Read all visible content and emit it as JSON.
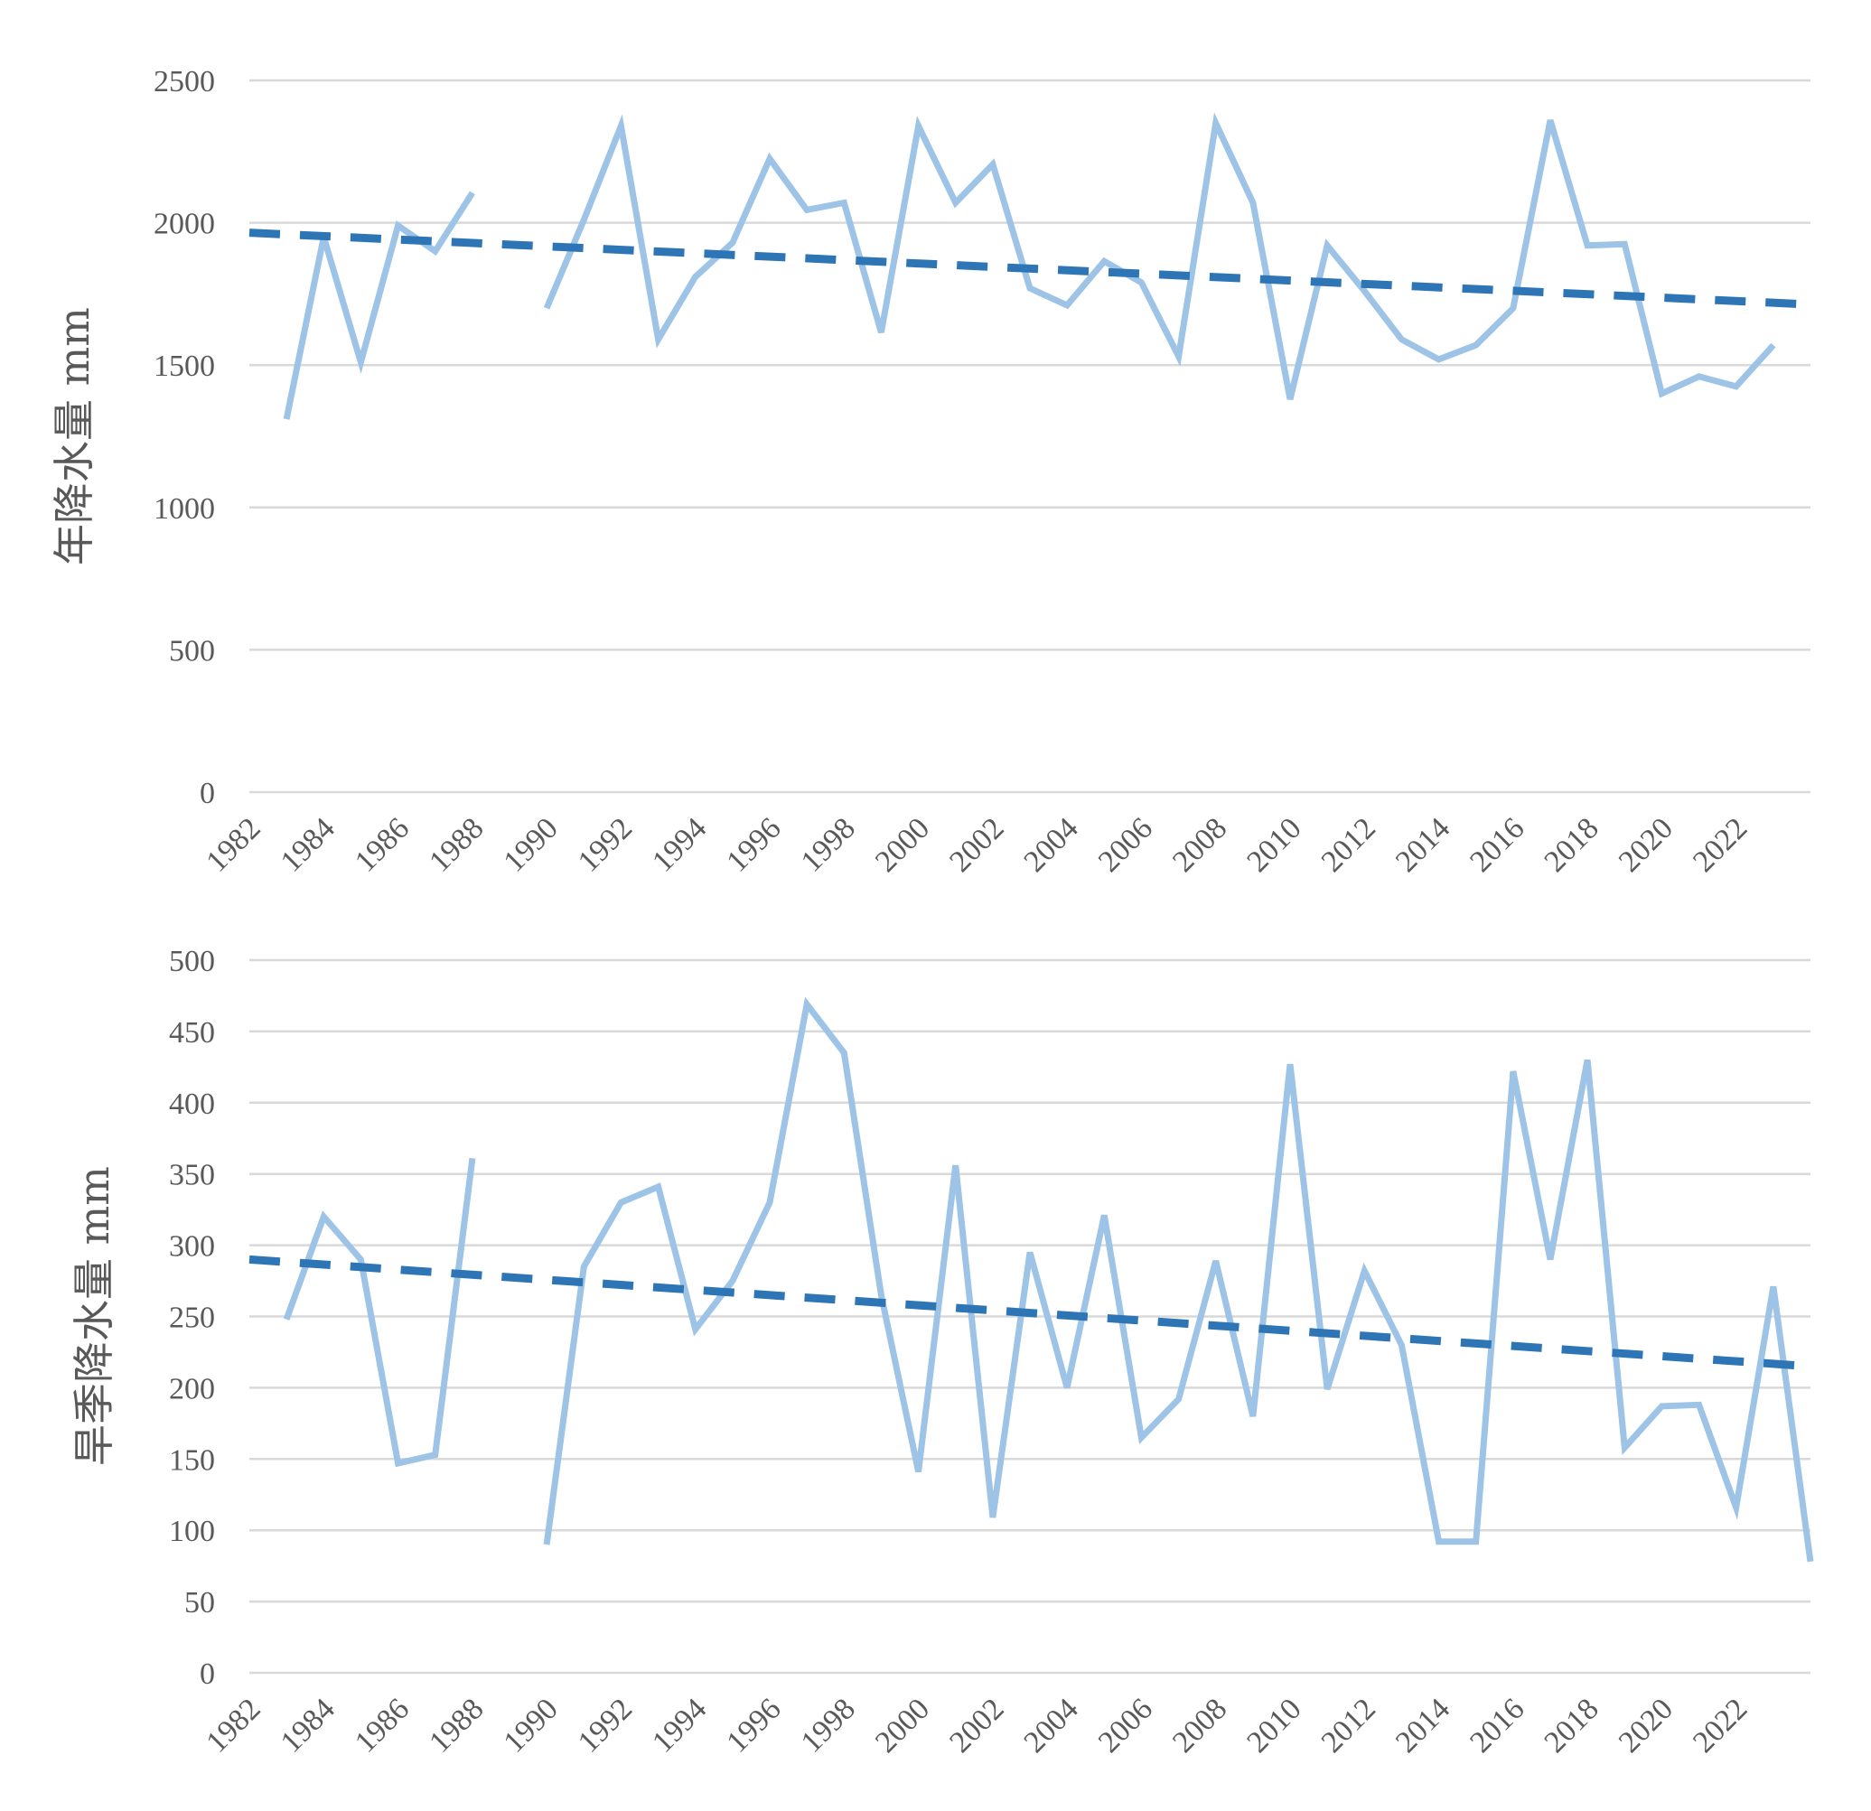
{
  "chart_data": [
    {
      "type": "line",
      "ylabel": "年降水量 mm",
      "ylim": [
        0,
        2500
      ],
      "yticks": [
        0,
        500,
        1000,
        1500,
        2000,
        2500
      ],
      "xlim": [
        1982,
        2024
      ],
      "xticks": [
        "1982",
        "1984",
        "1986",
        "1988",
        "1990",
        "1992",
        "1994",
        "1996",
        "1998",
        "2000",
        "2002",
        "2004",
        "2006",
        "2008",
        "2010",
        "2012",
        "2014",
        "2016",
        "2018",
        "2020",
        "2022"
      ],
      "grid": true,
      "series": [
        {
          "values": [
            [
              1983,
              1310
            ],
            [
              1984,
              1950
            ],
            [
              1985,
              1510
            ],
            [
              1986,
              1990
            ],
            [
              1987,
              1900
            ],
            [
              1988,
              2105
            ],
            [
              1989,
              null
            ],
            [
              1990,
              1700
            ],
            [
              1991,
              2010
            ],
            [
              1992,
              2340
            ],
            [
              1993,
              1590
            ],
            [
              1994,
              1810
            ],
            [
              1995,
              1930
            ],
            [
              1996,
              2225
            ],
            [
              1997,
              2045
            ],
            [
              1998,
              2070
            ],
            [
              1999,
              1615
            ],
            [
              2000,
              2340
            ],
            [
              2001,
              2070
            ],
            [
              2002,
              2205
            ],
            [
              2003,
              1770
            ],
            [
              2004,
              1710
            ],
            [
              2005,
              1865
            ],
            [
              2006,
              1790
            ],
            [
              2007,
              1530
            ],
            [
              2008,
              2350
            ],
            [
              2009,
              2070
            ],
            [
              2010,
              1380
            ],
            [
              2011,
              1920
            ],
            [
              2012,
              1760
            ],
            [
              2013,
              1590
            ],
            [
              2014,
              1520
            ],
            [
              2015,
              1570
            ],
            [
              2016,
              1700
            ],
            [
              2017,
              2360
            ],
            [
              2018,
              1920
            ],
            [
              2019,
              1925
            ],
            [
              2020,
              1400
            ],
            [
              2021,
              1460
            ],
            [
              2022,
              1425
            ],
            [
              2023,
              1570
            ]
          ]
        }
      ],
      "trendline": {
        "type": "linear",
        "x": [
          1982,
          2024
        ],
        "y": [
          1965,
          1713
        ]
      },
      "colors": {
        "series": "#9dc3e6",
        "trend": "#2e75b6",
        "grid": "#d9d9d9",
        "text": "#595959"
      }
    },
    {
      "type": "line",
      "ylabel": "旱季降水量 mm",
      "ylim": [
        0,
        500
      ],
      "yticks": [
        0,
        50,
        100,
        150,
        200,
        250,
        300,
        350,
        400,
        450,
        500
      ],
      "xlim": [
        1982,
        2024
      ],
      "xticks": [
        "1982",
        "1984",
        "1986",
        "1988",
        "1990",
        "1992",
        "1994",
        "1996",
        "1998",
        "2000",
        "2002",
        "2004",
        "2006",
        "2008",
        "2010",
        "2012",
        "2014",
        "2016",
        "2018",
        "2020",
        "2022"
      ],
      "grid": true,
      "series": [
        {
          "values": [
            [
              1983,
              248
            ],
            [
              1984,
              320
            ],
            [
              1985,
              290
            ],
            [
              1986,
              147
            ],
            [
              1987,
              153
            ],
            [
              1988,
              361
            ],
            [
              1989,
              null
            ],
            [
              1990,
              90
            ],
            [
              1991,
              285
            ],
            [
              1992,
              330
            ],
            [
              1993,
              341
            ],
            [
              1994,
              241
            ],
            [
              1995,
              275
            ],
            [
              1996,
              330
            ],
            [
              1997,
              469
            ],
            [
              1998,
              435
            ],
            [
              1999,
              265
            ],
            [
              2000,
              141
            ],
            [
              2001,
              356
            ],
            [
              2002,
              109
            ],
            [
              2003,
              295
            ],
            [
              2004,
              200
            ],
            [
              2005,
              321
            ],
            [
              2006,
              165
            ],
            [
              2007,
              192
            ],
            [
              2008,
              289
            ],
            [
              2009,
              180
            ],
            [
              2010,
              427
            ],
            [
              2011,
              199
            ],
            [
              2012,
              282
            ],
            [
              2013,
              230
            ],
            [
              2014,
              92
            ],
            [
              2015,
              92
            ],
            [
              2016,
              422
            ],
            [
              2017,
              290
            ],
            [
              2018,
              430
            ],
            [
              2019,
              158
            ],
            [
              2020,
              187
            ],
            [
              2021,
              188
            ],
            [
              2022,
              116
            ],
            [
              2023,
              271
            ],
            [
              2024,
              78
            ]
          ]
        }
      ],
      "trendline": {
        "type": "linear",
        "x": [
          1982,
          2024
        ],
        "y": [
          290,
          215
        ]
      },
      "colors": {
        "series": "#9dc3e6",
        "trend": "#2e75b6",
        "grid": "#d9d9d9",
        "text": "#595959"
      }
    }
  ]
}
